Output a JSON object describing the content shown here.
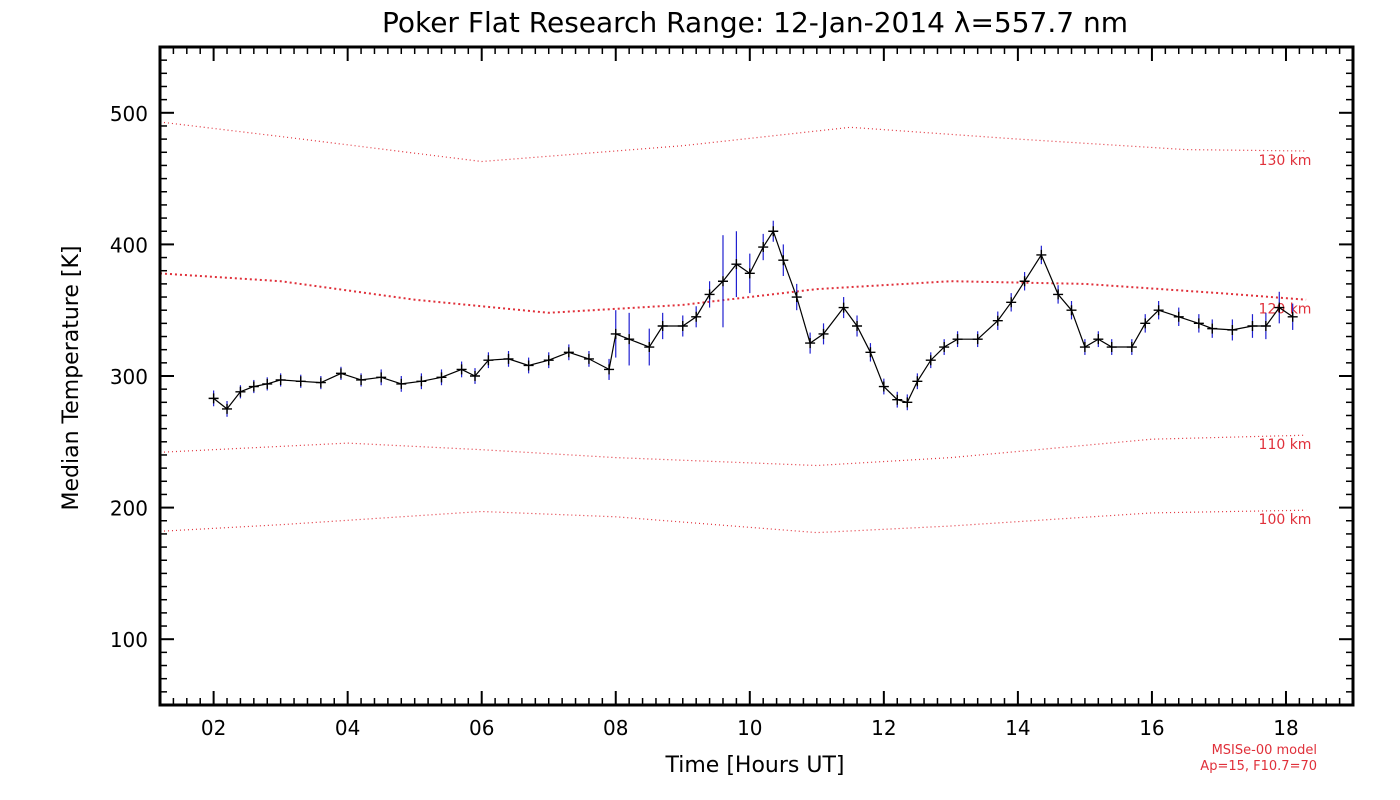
{
  "chart_data": {
    "type": "line",
    "title": "Poker Flat Research Range: 12-Jan-2014 λ=557.7 nm",
    "xlabel": "Time [Hours UT]",
    "ylabel": "Median Temperature [K]",
    "xlim": [
      1.2,
      19.0
    ],
    "ylim": [
      50,
      550
    ],
    "xticks": [
      2,
      4,
      6,
      8,
      10,
      12,
      14,
      16,
      18
    ],
    "xtick_labels": [
      "02",
      "04",
      "06",
      "08",
      "10",
      "12",
      "14",
      "16",
      "18"
    ],
    "yticks": [
      100,
      200,
      300,
      400,
      500
    ],
    "ytick_labels": [
      "100",
      "200",
      "300",
      "400",
      "500"
    ],
    "grid": false,
    "colors": {
      "data_line": "#000000",
      "error_bars": "#2020d0",
      "model": "#e0303a"
    },
    "series": [
      {
        "style": "line with error bars and plus markers",
        "x": [
          2.0,
          2.2,
          2.4,
          2.6,
          2.8,
          3.0,
          3.3,
          3.6,
          3.9,
          4.2,
          4.5,
          4.8,
          5.1,
          5.4,
          5.7,
          5.9,
          6.1,
          6.4,
          6.7,
          7.0,
          7.3,
          7.6,
          7.9,
          8.0,
          8.2,
          8.5,
          8.7,
          9.0,
          9.2,
          9.4,
          9.6,
          9.8,
          10.0,
          10.2,
          10.35,
          10.5,
          10.7,
          10.9,
          11.1,
          11.4,
          11.6,
          11.8,
          12.0,
          12.2,
          12.35,
          12.5,
          12.7,
          12.9,
          13.1,
          13.4,
          13.7,
          13.9,
          14.1,
          14.35,
          14.6,
          14.8,
          15.0,
          15.2,
          15.4,
          15.7,
          15.9,
          16.1,
          16.4,
          16.7,
          16.9,
          17.2,
          17.5,
          17.7,
          17.9,
          18.1
        ],
        "y": [
          283,
          275,
          288,
          292,
          294,
          297,
          296,
          295,
          302,
          297,
          299,
          294,
          296,
          299,
          305,
          300,
          312,
          313,
          308,
          312,
          318,
          313,
          305,
          332,
          328,
          322,
          338,
          338,
          345,
          362,
          372,
          385,
          378,
          398,
          410,
          388,
          360,
          325,
          332,
          352,
          338,
          318,
          292,
          282,
          280,
          296,
          312,
          322,
          328,
          328,
          342,
          356,
          372,
          392,
          362,
          350,
          322,
          328,
          322,
          322,
          340,
          350,
          345,
          340,
          336,
          335,
          338,
          338,
          352,
          345
        ],
        "error": [
          6,
          6,
          5,
          5,
          5,
          5,
          5,
          5,
          5,
          5,
          6,
          6,
          6,
          6,
          6,
          6,
          6,
          6,
          6,
          6,
          6,
          6,
          8,
          18,
          20,
          14,
          10,
          8,
          8,
          10,
          35,
          25,
          15,
          10,
          8,
          12,
          10,
          8,
          8,
          8,
          8,
          7,
          6,
          6,
          6,
          6,
          6,
          6,
          6,
          6,
          7,
          7,
          7,
          7,
          7,
          7,
          6,
          6,
          6,
          6,
          7,
          7,
          7,
          7,
          7,
          8,
          9,
          10,
          12,
          10
        ]
      }
    ],
    "model_curves": [
      {
        "label": "130 km",
        "x": [
          1.2,
          3.0,
          6.0,
          9.0,
          11.5,
          14.0,
          16.5,
          18.3
        ],
        "y": [
          493,
          482,
          463,
          475,
          489,
          480,
          472,
          471
        ]
      },
      {
        "label": "120 km",
        "x": [
          1.2,
          3.0,
          5.0,
          7.0,
          9.0,
          11.0,
          13.0,
          15.0,
          17.0,
          18.3
        ],
        "y": [
          378,
          372,
          358,
          348,
          354,
          366,
          372,
          370,
          363,
          358
        ]
      },
      {
        "label": "110 km",
        "x": [
          1.2,
          4.0,
          6.0,
          8.0,
          11.0,
          13.0,
          16.0,
          18.3
        ],
        "y": [
          242,
          249,
          244,
          238,
          232,
          238,
          252,
          255
        ]
      },
      {
        "label": "100 km",
        "x": [
          1.2,
          3.0,
          6.0,
          8.0,
          11.0,
          13.0,
          16.0,
          18.3
        ],
        "y": [
          182,
          187,
          197,
          193,
          181,
          186,
          196,
          198
        ]
      }
    ],
    "annotations": [
      "MSISe-00 model",
      "Ap=15, F10.7=70"
    ]
  }
}
